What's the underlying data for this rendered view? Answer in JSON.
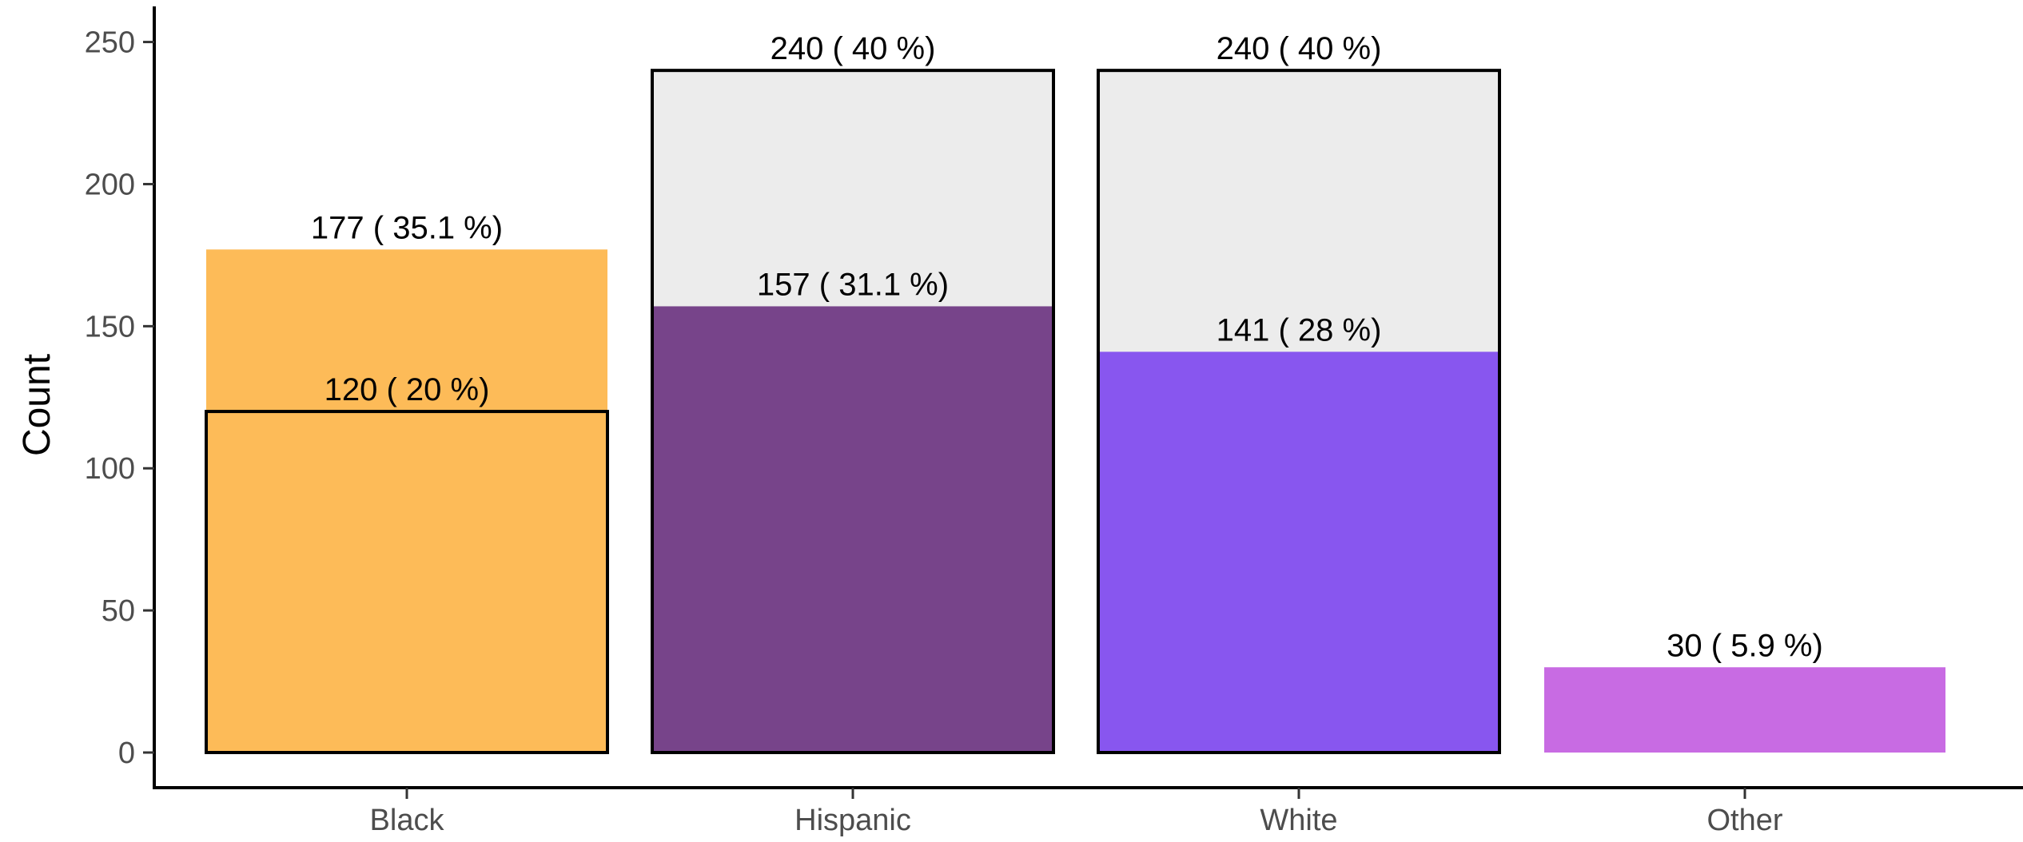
{
  "chart_data": {
    "type": "bar",
    "title": "",
    "xlabel": "",
    "ylabel": "Count",
    "ylim": [
      0,
      260
    ],
    "yticks": [
      0,
      50,
      100,
      150,
      200,
      250
    ],
    "grid": false,
    "categories": [
      "Black",
      "Hispanic",
      "White",
      "Other"
    ],
    "series": [
      {
        "style": "outlined",
        "values": [
          120,
          240,
          240,
          null
        ],
        "labels": [
          "120 ( 20 %)",
          "240 ( 40 %)",
          "240 ( 40 %)",
          ""
        ],
        "colors": [
          "#EDB25A",
          "#ECECEC",
          "#ECECEC",
          null
        ]
      },
      {
        "style": "filled",
        "values": [
          177,
          157,
          141,
          30
        ],
        "labels": [
          "177 ( 35.1 %)",
          "157 ( 31.1 %)",
          "141 ( 28 %)",
          "30 ( 5.9 %)"
        ],
        "colors": [
          "#FDBB58",
          "#77448A",
          "#8856EF",
          "#C86BE3"
        ]
      }
    ]
  }
}
